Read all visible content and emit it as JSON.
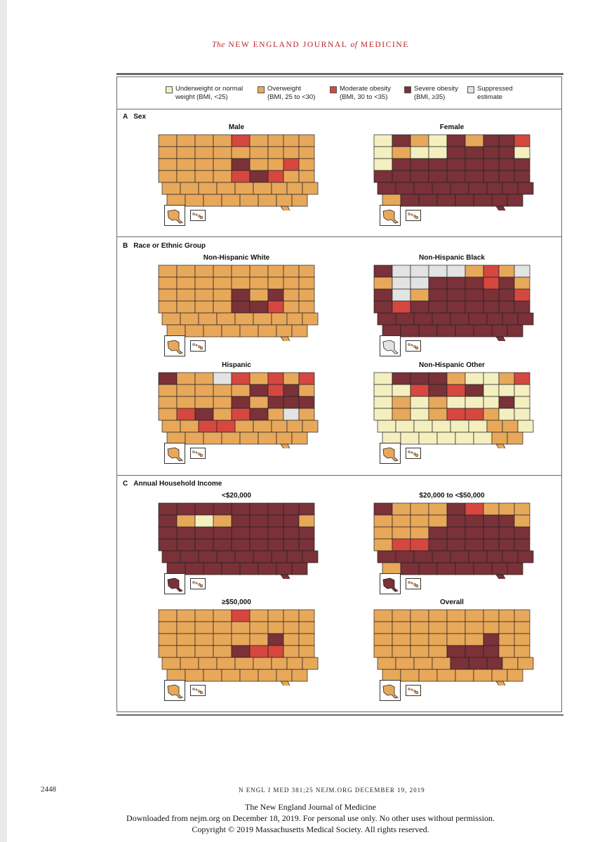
{
  "colors": {
    "under": "#f3efbf",
    "over": "#e8a85a",
    "moderate": "#d6473f",
    "severe": "#7a3138",
    "suppressed": "#e3e3e3"
  },
  "header": {
    "journal_prefix": "The",
    "journal_mid": "NEW ENGLAND JOURNAL",
    "journal_of": "of",
    "journal_suffix": "MEDICINE"
  },
  "legend": [
    {
      "line1": "Underweight or normal",
      "line2": "weight (BMI, <25)",
      "key": "under"
    },
    {
      "line1": "Overweight",
      "line2": "(BMI, 25 to <30)",
      "key": "over"
    },
    {
      "line1": "Moderate obesity",
      "line2": "(BMI, 30 to <35)",
      "key": "moderate"
    },
    {
      "line1": "Severe obesity",
      "line2": "(BMI, ≥35)",
      "key": "severe"
    },
    {
      "line1": "Suppressed",
      "line2": "estimate",
      "key": "suppressed"
    }
  ],
  "sections": [
    {
      "letter": "A",
      "label": "Sex"
    },
    {
      "letter": "B",
      "label": "Race or Ethnic Group"
    },
    {
      "letter": "C",
      "label": "Annual Household Income"
    }
  ],
  "panels": [
    {
      "title": "Male",
      "ak": "over",
      "hi": "over",
      "grid": [
        "OOOOMOOOO",
        "OOOOOOOOO",
        "OOOOSOOMO",
        "OOOOMSMOO",
        "OOOOOOOOO",
        "OOOOOOOOO"
      ]
    },
    {
      "title": "Female",
      "ak": "over",
      "hi": "over",
      "grid": [
        "USOUSOSSM",
        "UOUUSSSSU",
        "USSSSSSSS",
        "SSSSSSSSS",
        "SSSSSSSSS",
        "OSSSSSSSS"
      ]
    },
    {
      "title": "Non-Hispanic White",
      "ak": "over",
      "hi": "over",
      "grid": [
        "OOOOOOOOO",
        "OOOOOOOOO",
        "OOOOSOSOO",
        "OOOOSSMOO",
        "OOOOOOOOO",
        "OOOOOOOOO"
      ]
    },
    {
      "title": "Non-Hispanic Black",
      "ak": "suppressed",
      "hi": "over",
      "grid": [
        "SXXXXOMOX",
        "OXXSSSMSO",
        "SXOSSSSSM",
        "SMSSSSSSS",
        "SSSSSSSSS",
        "SSSSSSSSS"
      ]
    },
    {
      "title": "Hispanic",
      "ak": "over",
      "hi": "over",
      "grid": [
        "SOOXMOMOM",
        "OOOOOSMSO",
        "OOOOSOSSS",
        "OMSOMSOXO",
        "OOMMOOOOO",
        "OOOOOOOOO"
      ]
    },
    {
      "title": "Non-Hispanic Other",
      "ak": "over",
      "hi": "over",
      "grid": [
        "USSSOUUOM",
        "UUMSMSUUU",
        "UOUOUUUSU",
        "UOUOMMOUU",
        "UUUUUUOOU",
        "UUUUUUOOU"
      ]
    },
    {
      "title": "<$20,000",
      "ak": "severe",
      "hi": "over",
      "grid": [
        "SSSSSSSSS",
        "SOUOSSSSO",
        "SSSSSSSSS",
        "SSSSSSSSS",
        "SSSSSSSSS",
        "SSSSSSSSS"
      ]
    },
    {
      "title": "$20,000 to <$50,000",
      "ak": "severe",
      "hi": "over",
      "grid": [
        "SOOOSMOOO",
        "OOOOSSSSO",
        "OOOSSSSSS",
        "OMMSSSSSS",
        "SSSSSSSSS",
        "OSSSSSSSS"
      ]
    },
    {
      "title": "≥$50,000",
      "ak": "over",
      "hi": "over",
      "grid": [
        "OOOOMOOOO",
        "OOOOOOOOO",
        "OOOOOOSOO",
        "OOOOSMMOO",
        "OOOOOOOOO",
        "OOOOOOOOO"
      ]
    },
    {
      "title": "Overall",
      "ak": "over",
      "hi": "over",
      "grid": [
        "OOOOOOOOO",
        "OOOOOOOOO",
        "OOOOOOSOO",
        "OOOOSSSOO",
        "OOOOSSSOO",
        "OOOOOOOOO"
      ]
    }
  ],
  "footer": {
    "page_number": "2448",
    "citation": "N ENGL J MED 381;25    NEJM.ORG    DECEMBER 19, 2019",
    "line1": "The New England Journal of Medicine",
    "line2": "Downloaded from nejm.org on December 18, 2019. For personal use only. No other uses without permission.",
    "line3": "Copyright © 2019 Massachusetts Medical Society. All rights reserved."
  }
}
